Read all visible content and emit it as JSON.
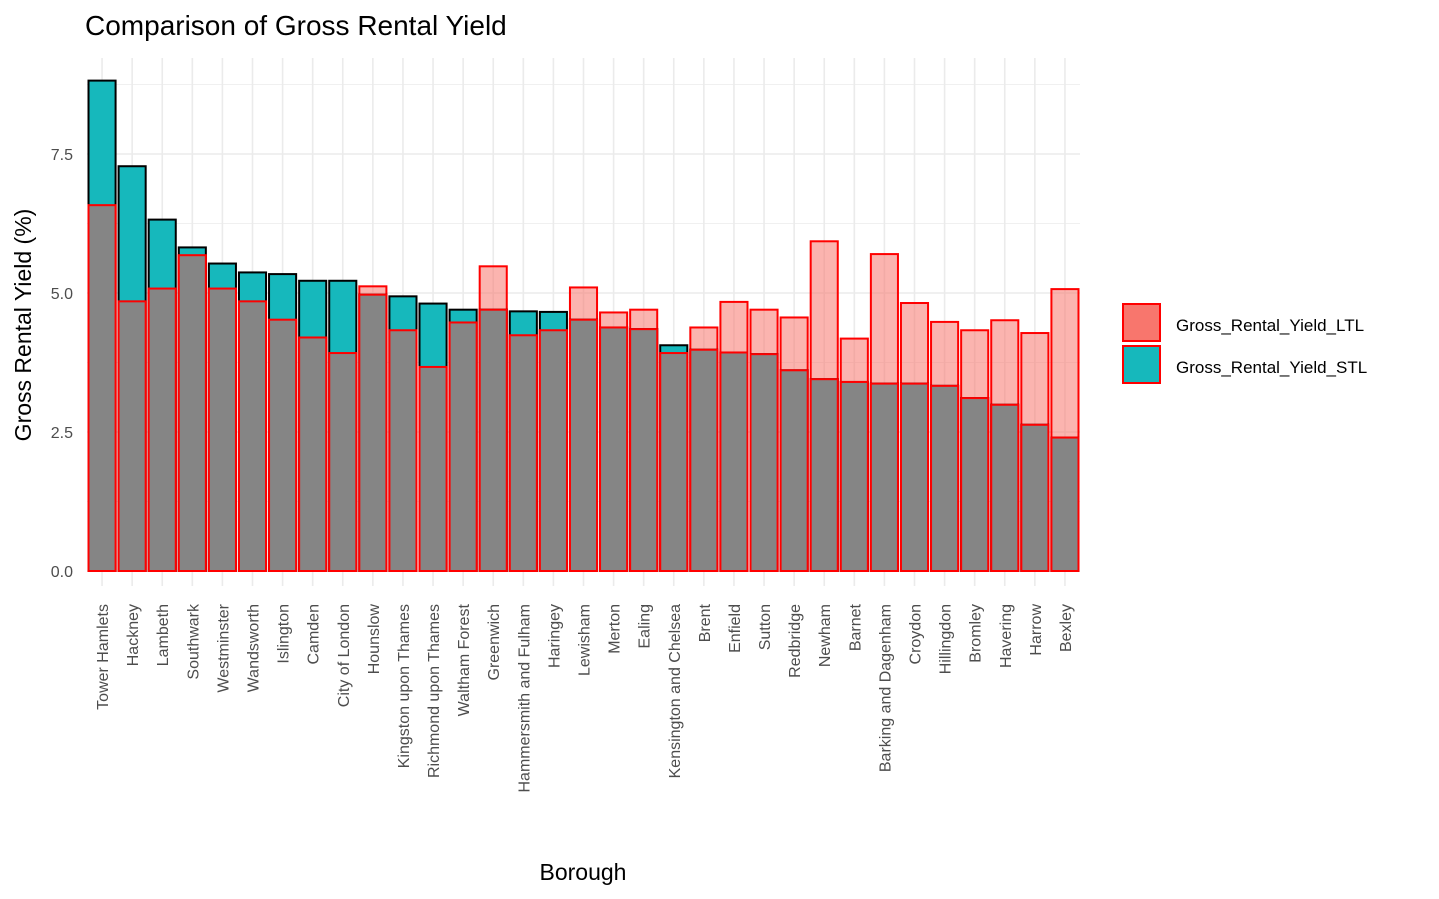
{
  "chart_data": {
    "type": "bar",
    "title": "Comparison of Gross Rental Yield",
    "xlabel": "Borough",
    "ylabel": "Gross Rental Yield (%)",
    "ylim": [
      0,
      8.85
    ],
    "yticks": [
      0,
      2.5,
      5,
      7.5
    ],
    "ytick_labels": [
      "0.0",
      "2.5",
      "5.0",
      "7.5"
    ],
    "grid": true,
    "legend_position": "right",
    "categories": [
      "Tower Hamlets",
      "Hackney",
      "Lambeth",
      "Southwark",
      "Westminster",
      "Wandsworth",
      "Islington",
      "Camden",
      "City of London",
      "Hounslow",
      "Kingston upon Thames",
      "Richmond upon Thames",
      "Waltham Forest",
      "Greenwich",
      "Hammersmith and Fulham",
      "Haringey",
      "Lewisham",
      "Merton",
      "Ealing",
      "Kensington and Chelsea",
      "Brent",
      "Enfield",
      "Sutton",
      "Redbridge",
      "Newham",
      "Barnet",
      "Barking and Dagenham",
      "Croydon",
      "Hillingdon",
      "Bromley",
      "Havering",
      "Harrow",
      "Bexley"
    ],
    "series": [
      {
        "name": "Gross_Rental_Yield_LTL",
        "color": "#F8766D",
        "values": [
          6.58,
          4.85,
          5.08,
          5.68,
          5.08,
          4.85,
          4.52,
          4.2,
          3.92,
          5.12,
          4.33,
          3.67,
          4.47,
          5.48,
          4.24,
          4.33,
          5.1,
          4.65,
          4.7,
          3.92,
          4.38,
          4.84,
          4.7,
          4.56,
          5.93,
          4.18,
          5.7,
          4.82,
          4.48,
          4.33,
          4.51,
          4.28,
          5.07
        ]
      },
      {
        "name": "Gross_Rental_Yield_STL",
        "color": "#00BFC4",
        "values": [
          8.82,
          7.28,
          6.32,
          5.82,
          5.53,
          5.37,
          5.34,
          5.22,
          5.22,
          4.97,
          4.94,
          4.81,
          4.7,
          4.7,
          4.67,
          4.66,
          4.52,
          4.38,
          4.35,
          4.06,
          3.98,
          3.93,
          3.9,
          3.61,
          3.45,
          3.4,
          3.37,
          3.37,
          3.33,
          3.11,
          2.99,
          2.63,
          2.4
        ]
      }
    ]
  }
}
